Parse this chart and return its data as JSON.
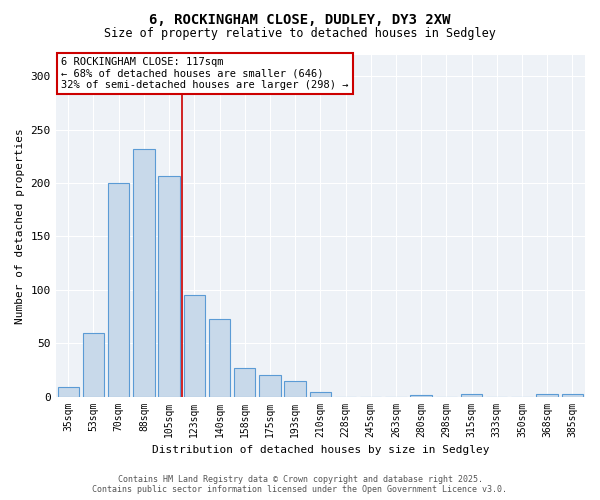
{
  "title1": "6, ROCKINGHAM CLOSE, DUDLEY, DY3 2XW",
  "title2": "Size of property relative to detached houses in Sedgley",
  "xlabel": "Distribution of detached houses by size in Sedgley",
  "ylabel": "Number of detached properties",
  "categories": [
    "35sqm",
    "53sqm",
    "70sqm",
    "88sqm",
    "105sqm",
    "123sqm",
    "140sqm",
    "158sqm",
    "175sqm",
    "193sqm",
    "210sqm",
    "228sqm",
    "245sqm",
    "263sqm",
    "280sqm",
    "298sqm",
    "315sqm",
    "333sqm",
    "350sqm",
    "368sqm",
    "385sqm"
  ],
  "values": [
    9,
    60,
    200,
    232,
    207,
    95,
    73,
    27,
    20,
    15,
    4,
    0,
    0,
    0,
    1,
    0,
    2,
    0,
    0,
    2,
    2
  ],
  "bar_color": "#c8d9ea",
  "bar_edge_color": "#5b9bd5",
  "marker_line_index": 5,
  "marker_line_color": "#cc0000",
  "annotation_title": "6 ROCKINGHAM CLOSE: 117sqm",
  "annotation_line1": "← 68% of detached houses are smaller (646)",
  "annotation_line2": "32% of semi-detached houses are larger (298) →",
  "ylim": [
    0,
    320
  ],
  "yticks": [
    0,
    50,
    100,
    150,
    200,
    250,
    300
  ],
  "bg_color": "#eef2f7",
  "footer1": "Contains HM Land Registry data © Crown copyright and database right 2025.",
  "footer2": "Contains public sector information licensed under the Open Government Licence v3.0."
}
